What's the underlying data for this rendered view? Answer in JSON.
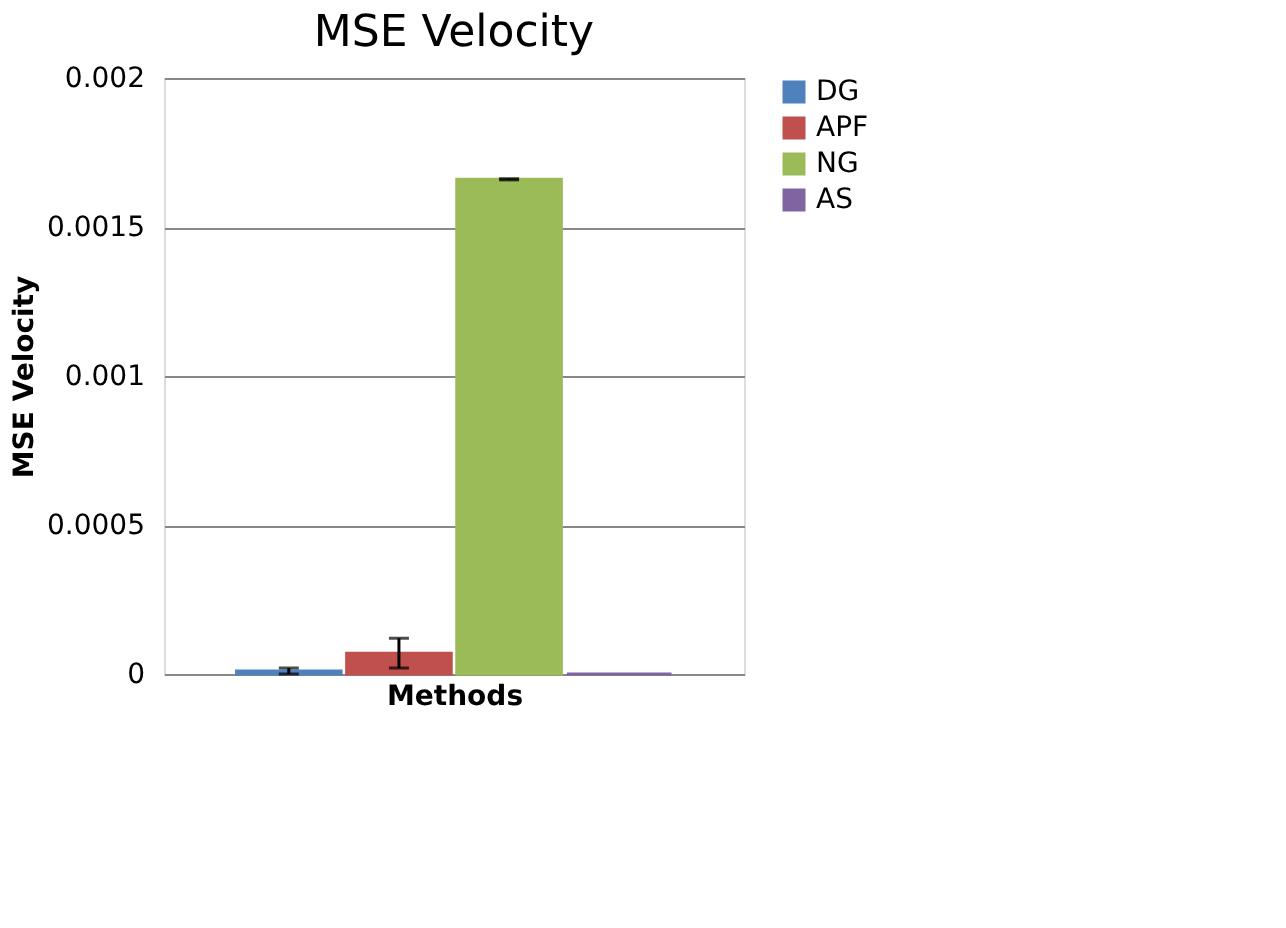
{
  "chart_data": {
    "type": "bar",
    "title": "MSE Velocity",
    "xlabel": "Methods",
    "ylabel": "MSE Velocity",
    "categories": [
      null
    ],
    "series": [
      {
        "name": "DG",
        "color": "#4f81bd",
        "values": [
          1e-05
        ],
        "errors": [
          1e-05
        ]
      },
      {
        "name": "APF",
        "color": "#c0504d",
        "values": [
          7e-05
        ],
        "errors": [
          5e-05
        ]
      },
      {
        "name": "NG",
        "color": "#9bbb59",
        "values": [
          0.00166
        ],
        "errors": [
          2e-06
        ]
      },
      {
        "name": "AS",
        "color": "#8064a2",
        "values": [
          0
        ]
      }
    ],
    "ylim": [
      0,
      0.002
    ],
    "yticks": [
      0,
      0.0005,
      0.001,
      0.0015,
      0.002
    ],
    "grid": "y",
    "legend": "right"
  }
}
